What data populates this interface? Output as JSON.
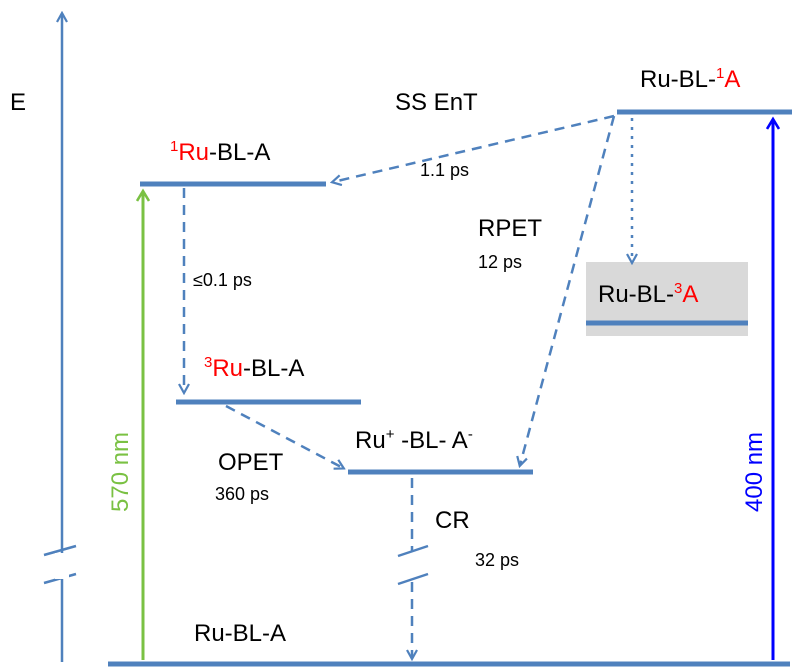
{
  "axis": {
    "label": "E"
  },
  "colors": {
    "level": "#4f81bd",
    "red": "#ff0000",
    "green": "#7ac143",
    "blue": "#0000ff",
    "gray_box": "#d9d9d9"
  },
  "states": {
    "ground": {
      "label": "Ru-BL-A"
    },
    "singlet_ru": {
      "sup": "1",
      "colored": "Ru",
      "rest": "-BL-A"
    },
    "triplet_ru": {
      "sup": "3",
      "colored": "Ru",
      "rest": "-BL-A"
    },
    "cs": {
      "label_a": "Ru",
      "sup_a": "+",
      "label_b": " -BL- A",
      "sup_b": "-"
    },
    "singlet_a": {
      "prefix": "Ru-BL-",
      "sup": "1",
      "colored": "A"
    },
    "triplet_a": {
      "prefix": "Ru-BL-",
      "sup": "3",
      "colored": "A"
    }
  },
  "processes": {
    "ss_ent": {
      "name": "SS EnT",
      "time": "1.1 ps"
    },
    "rpet": {
      "name": "RPET",
      "time": "12 ps"
    },
    "isc": {
      "time": "≤0.1 ps"
    },
    "opet": {
      "name": "OPET",
      "time": "360 ps"
    },
    "cr": {
      "name": "CR",
      "time": "32 ps"
    }
  },
  "excitation": {
    "green": "570 nm",
    "blue": "400 nm"
  }
}
